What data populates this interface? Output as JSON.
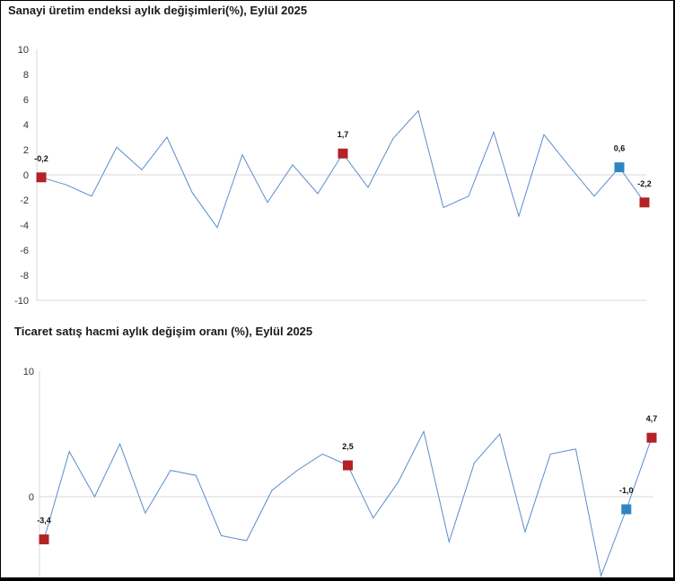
{
  "chart_data": [
    {
      "type": "line",
      "title": "Sanayi üretim endeksi aylık değişimleri(%), Eylül 2025",
      "ylim": [
        -10,
        10
      ],
      "yticks": [
        "10",
        "8",
        "6",
        "4",
        "2",
        "0",
        "-2",
        "-4",
        "-6",
        "-8",
        "-10"
      ],
      "grid": false,
      "series": [
        {
          "values": [
            -0.2,
            -0.8,
            -1.7,
            2.2,
            0.4,
            3.0,
            -1.4,
            -4.2,
            1.6,
            -2.2,
            0.8,
            -1.5,
            1.7,
            -1.0,
            2.9,
            5.1,
            -2.6,
            -1.7,
            3.4,
            -3.3,
            3.2,
            0.7,
            -1.7,
            0.6,
            -2.2
          ]
        }
      ],
      "highlights": [
        {
          "index": 0,
          "label": "-0,2",
          "color": "#b22226"
        },
        {
          "index": 12,
          "label": "1,7",
          "color": "#b22226"
        },
        {
          "index": 23,
          "label": "0,6",
          "color": "#2e86c1"
        },
        {
          "index": 24,
          "label": "-2,2",
          "color": "#b22226"
        }
      ],
      "line_color": "#5b8ccc"
    },
    {
      "type": "line",
      "title": "Ticaret satış hacmi aylık değişim oranı (%), Eylül 2025",
      "ylim": [
        -6.5,
        10
      ],
      "yticks": [
        "10",
        "0"
      ],
      "grid": false,
      "series": [
        {
          "values": [
            -3.4,
            3.6,
            0.0,
            4.2,
            -1.3,
            2.1,
            1.7,
            -3.1,
            -3.5,
            0.5,
            2.1,
            3.4,
            2.5,
            -1.7,
            1.2,
            5.2,
            -3.6,
            2.7,
            5.0,
            -2.8,
            3.4,
            3.8,
            -6.3,
            -1.0,
            4.7
          ]
        }
      ],
      "highlights": [
        {
          "index": 0,
          "label": "-3,4",
          "color": "#b22226"
        },
        {
          "index": 12,
          "label": "2,5",
          "color": "#b22226"
        },
        {
          "index": 23,
          "label": "-1,0",
          "color": "#2e86c1"
        },
        {
          "index": 24,
          "label": "4,7",
          "color": "#b22226"
        }
      ],
      "line_color": "#5b8ccc"
    }
  ]
}
